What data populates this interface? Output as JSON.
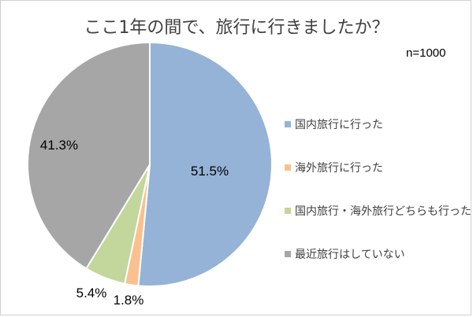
{
  "note": "n=1000",
  "chart_data": {
    "type": "pie",
    "title": "ここ1年の間で、旅行に行きましたか？",
    "start_angle_deg": 0,
    "direction": "clockwise",
    "legend_position": "right",
    "slices": [
      {
        "label": "国内旅行に行った",
        "value": 51.5,
        "display": "51.5%",
        "color": "#95b3d7"
      },
      {
        "label": "海外旅行に行った",
        "value": 1.8,
        "display": "1.8%",
        "color": "#fac090"
      },
      {
        "label": "国内旅行・海外旅行どちらも行った",
        "value": 5.4,
        "display": "5.4%",
        "color": "#c3d69b"
      },
      {
        "label": "最近旅行はしていない",
        "value": 41.3,
        "display": "41.3%",
        "color": "#a6a6a6"
      }
    ]
  }
}
